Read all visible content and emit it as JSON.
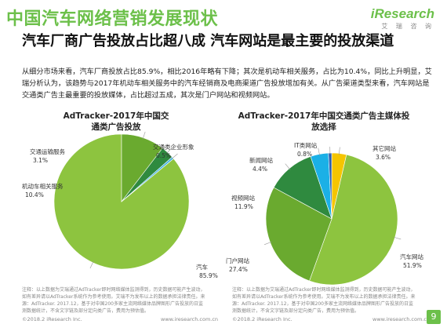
{
  "header": {
    "title": "中国汽车网络营销发展现状",
    "logo": "iResearch",
    "logo_sub": "艾 瑞 咨 询",
    "subtitle": "汽车厂商广告投放占比超八成  汽车网站是最主要的投放渠道",
    "summary": "从细分市场来看，汽车厂商投放占比85.9%，相比2016年略有下降；其次是机动车相关服务，占比为10.4%，同比上升明显，艾瑞分析认为，该趋势与2017年机动车相关服务中的汽车经销商及电商渠道广告投放增加有关。从广告渠道类型来看，汽车网站是交通类广告主最重要的投放媒体，占比超过五成，其次是门户网站和视频网站。"
  },
  "colors": {
    "brand_green": "#6cc04a"
  },
  "chart_data": [
    {
      "type": "pie",
      "title": "AdTracker-2017年中国交通类广告投放细分行业",
      "slices": [
        {
          "label": "汽车",
          "value": 85.9,
          "display": "85.9%",
          "color": "#8dc43f"
        },
        {
          "label": "机动车相关服务",
          "value": 10.4,
          "display": "10.4%",
          "color": "#6aaa2f"
        },
        {
          "label": "交通运输服务",
          "value": 3.1,
          "display": "3.1%",
          "color": "#2f8a3f"
        },
        {
          "label": "交通类企业形象",
          "value": 0.5,
          "display": "0.5%",
          "color": "#45b5e3"
        }
      ]
    },
    {
      "type": "pie",
      "title": "AdTracker-2017年中国交通类广告主媒体投放选择",
      "slices": [
        {
          "label": "汽车网站",
          "value": 51.9,
          "display": "51.9%",
          "color": "#8dc43f"
        },
        {
          "label": "门户网站",
          "value": 27.4,
          "display": "27.4%",
          "color": "#6aaa2f"
        },
        {
          "label": "视频网站",
          "value": 11.9,
          "display": "11.9%",
          "color": "#2f8a3f"
        },
        {
          "label": "新闻网站",
          "value": 4.4,
          "display": "4.4%",
          "color": "#1bb0e6"
        },
        {
          "label": "IT类网站",
          "value": 0.8,
          "display": "0.8%",
          "color": "#2a5db0"
        },
        {
          "label": "其它网站",
          "value": 3.6,
          "display": "3.6%",
          "color": "#f5c500"
        }
      ]
    }
  ],
  "notes": [
    "注释：以上数据为艾瑞通过AdTracker即时网络媒体监测得到，历史数据可能产生波动，如有差异请以AdTracker系统作为参考使用。艾瑞不为发布以上的数据承担法律责任。来源：AdTracker. 2017.12，基于对中国200多家主流网络媒体品牌图形广告投放的日监测数据统计，不含文字链及部分定向类广告，费用为预估值。",
    "注释：以上数据为艾瑞通过AdTracker即时网络媒体监测得到，历史数据可能产生波动，如有差异请以AdTracker系统作为参考使用。艾瑞不为发布以上的数据承担法律责任。来源：AdTracker. 2017.12，基于对中国200多家主流网络媒体品牌图形广告投放的日监测数据统计，不含文字链及部分定向类广告，费用为预估值。"
  ],
  "footer": {
    "copyright": "©2018.2  iResearch Inc.",
    "website": "www.iresearch.com.cn",
    "page": "9"
  }
}
